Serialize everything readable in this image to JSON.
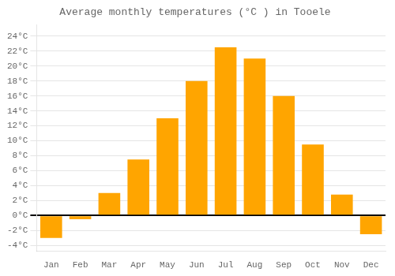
{
  "chart_data": {
    "type": "bar",
    "title": "Average monthly temperatures (°C ) in Tooele",
    "categories": [
      "Jan",
      "Feb",
      "Mar",
      "Apr",
      "May",
      "Jun",
      "Jul",
      "Aug",
      "Sep",
      "Oct",
      "Nov",
      "Dec"
    ],
    "values": [
      -3.0,
      -0.5,
      3.0,
      7.5,
      13.0,
      18.0,
      22.5,
      21.0,
      16.0,
      9.5,
      2.8,
      -2.5
    ],
    "color": "#FFA500",
    "ylim": [
      -4.8,
      25.5
    ],
    "yticks": [
      {
        "value": -4,
        "label": "-4°C"
      },
      {
        "value": -2,
        "label": "-2°C"
      },
      {
        "value": 0,
        "label": "0°C"
      },
      {
        "value": 2,
        "label": "2°C"
      },
      {
        "value": 4,
        "label": "4°C"
      },
      {
        "value": 6,
        "label": "6°C"
      },
      {
        "value": 8,
        "label": "8°C"
      },
      {
        "value": 10,
        "label": "10°C"
      },
      {
        "value": 12,
        "label": "12°C"
      },
      {
        "value": 14,
        "label": "14°C"
      },
      {
        "value": 16,
        "label": "16°C"
      },
      {
        "value": 18,
        "label": "18°C"
      },
      {
        "value": 20,
        "label": "20°C"
      },
      {
        "value": 22,
        "label": "22°C"
      },
      {
        "value": 24,
        "label": "24°C"
      }
    ],
    "grid": true
  }
}
